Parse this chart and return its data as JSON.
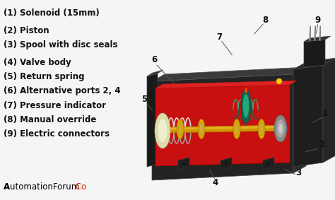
{
  "background_color": "#f0f0f0",
  "labels": [
    "(1) Solenoid (15mm)",
    "(2) Piston",
    "(3) Spool with disc seals",
    "(4) Valve body",
    "(5) Return spring",
    "(6) Alternative ports 2, 4",
    "(7) Pressure indicator",
    "(8) Manual override",
    "(9) Electric connectors"
  ],
  "label_fontsize": 8.5,
  "label_color": "#111111",
  "brand_A": "A",
  "brand_rest": "utomationForum",
  "brand_co": ".Co",
  "brand_color_A": "#000000",
  "brand_color_rest": "#000000",
  "brand_color_co": "#cc2200",
  "brand_fontsize": 8.5,
  "callout_numbers": [
    "1",
    "2",
    "3",
    "4",
    "5",
    "6",
    "7",
    "8",
    "9"
  ],
  "callout_fontsize": 8.5
}
